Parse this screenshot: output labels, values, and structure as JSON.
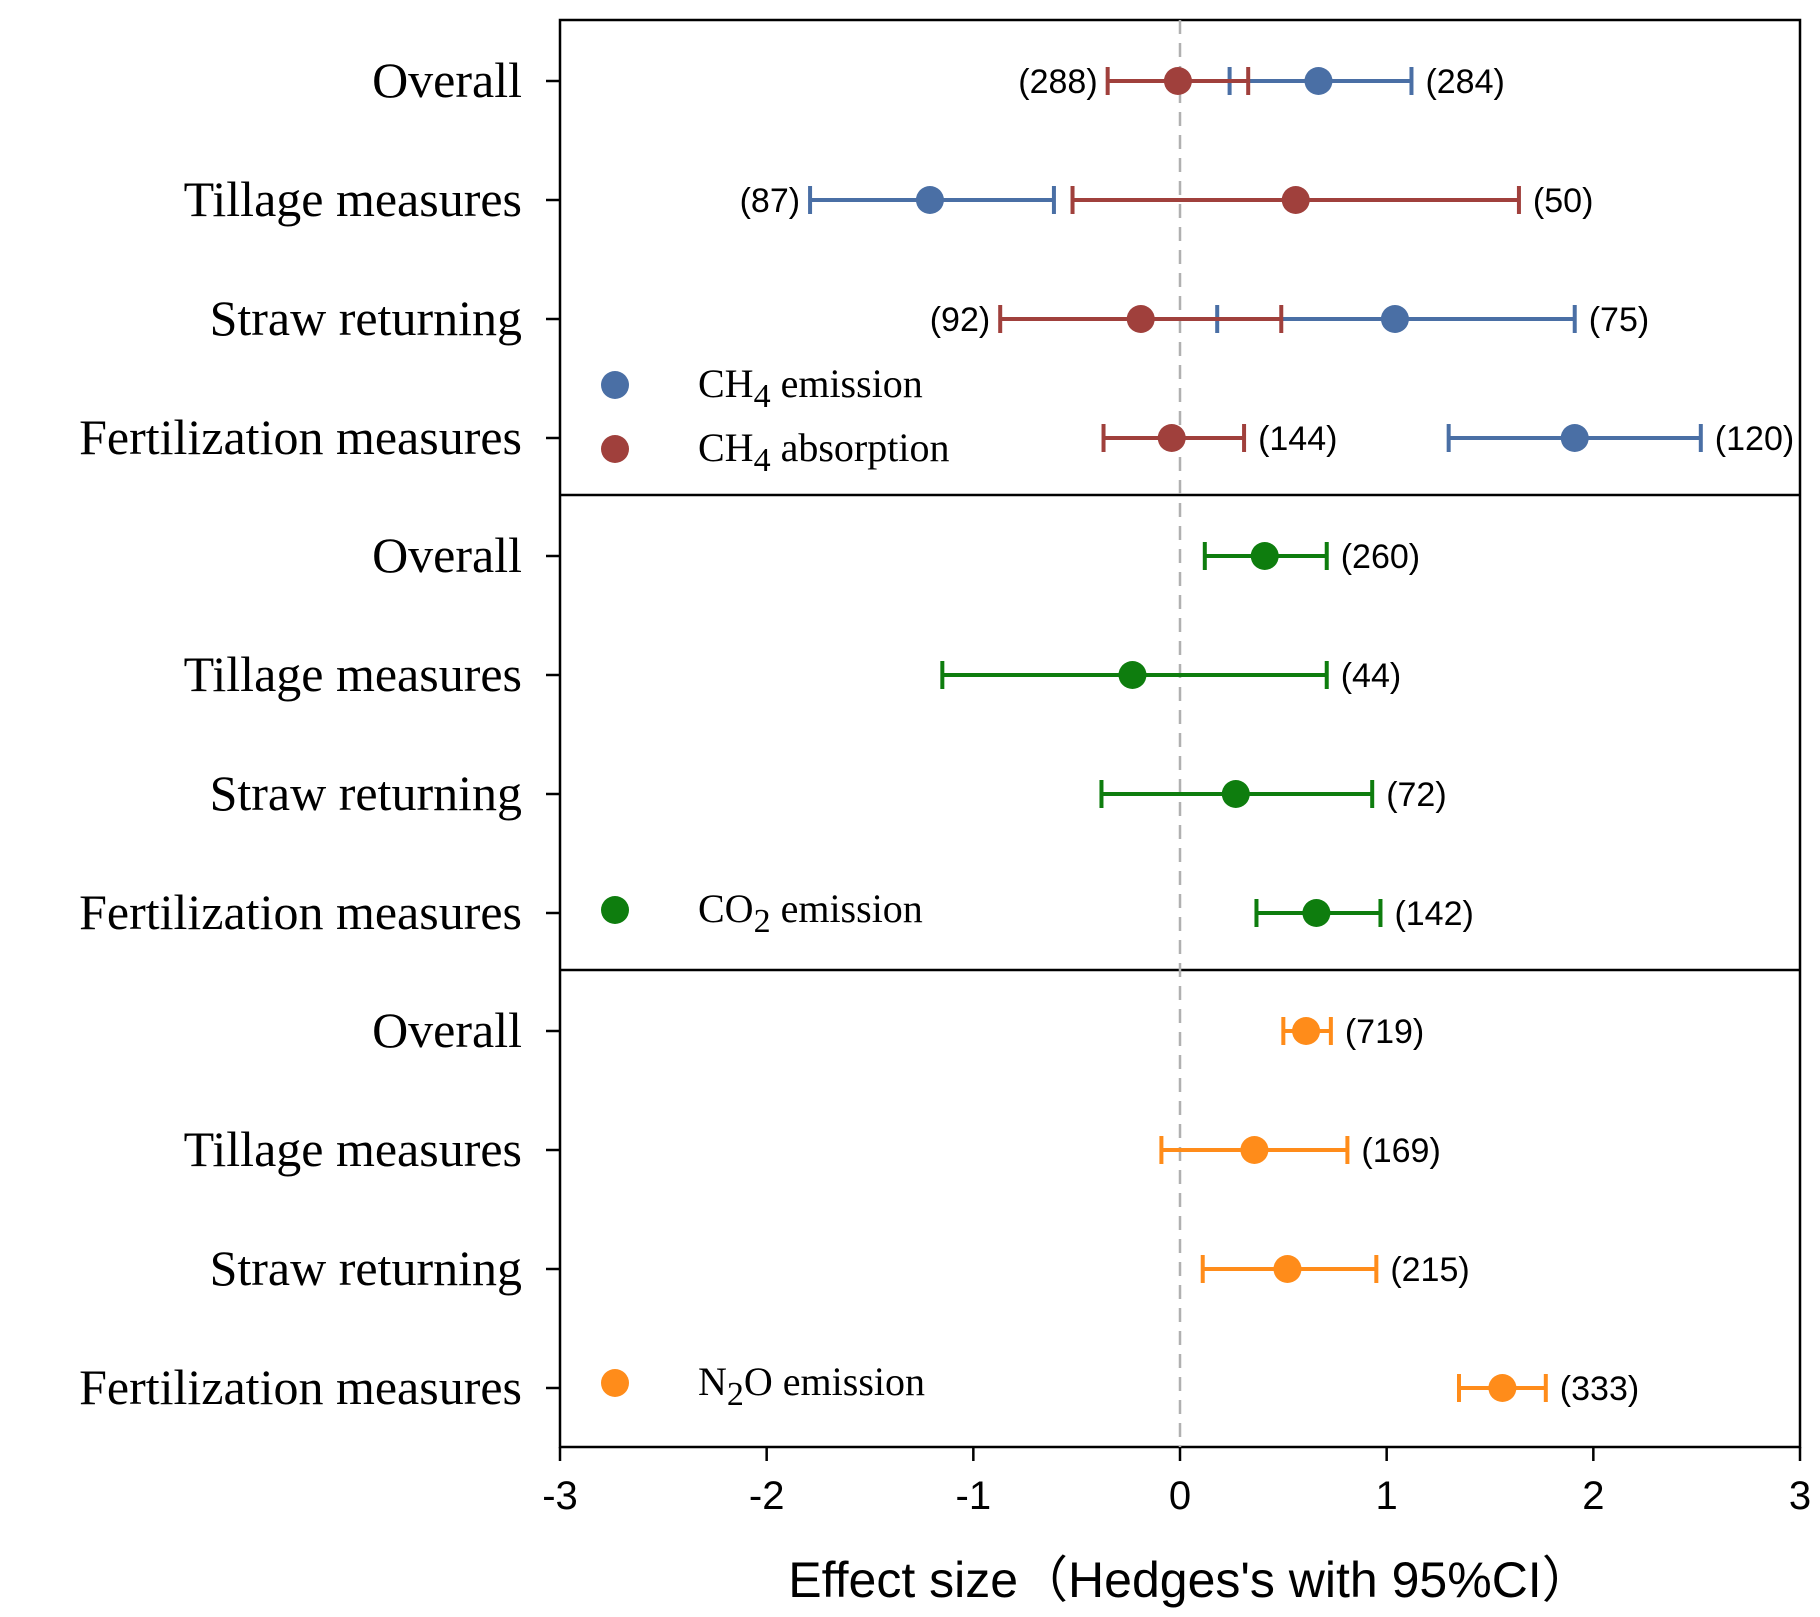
{
  "chart_data": {
    "type": "forest",
    "xlabel": "Effect size（Hedges's with 95%CI）",
    "xlim": [
      -3,
      3
    ],
    "xticks": [
      "-3",
      "-2",
      "-1",
      "0",
      "1",
      "2",
      "3"
    ],
    "reference_line": 0,
    "categories": [
      "Overall",
      "Tillage measures",
      "Straw returning",
      "Fertilization measures"
    ],
    "panels": [
      {
        "name": "CH4",
        "legend": [
          {
            "pre": "CH",
            "sub": "4",
            "post": " emission",
            "color": "#4A6FA5"
          },
          {
            "pre": "CH",
            "sub": "4",
            "post": " absorption",
            "color": "#A0403C"
          }
        ],
        "series": [
          {
            "name": "CH4 emission",
            "color": "#4A6FA5",
            "points": [
              {
                "category": "Overall",
                "mean": 0.67,
                "lo": 0.24,
                "hi": 1.12,
                "n": "(284)",
                "label_side": "right"
              },
              {
                "category": "Tillage measures",
                "mean": -1.21,
                "lo": -1.79,
                "hi": -0.61,
                "n": "(87)",
                "label_side": "left"
              },
              {
                "category": "Straw returning",
                "mean": 1.04,
                "lo": 0.18,
                "hi": 1.91,
                "n": "(75)",
                "label_side": "right"
              },
              {
                "category": "Fertilization measures",
                "mean": 1.91,
                "lo": 1.3,
                "hi": 2.52,
                "n": "(120)",
                "label_side": "right"
              }
            ]
          },
          {
            "name": "CH4 absorption",
            "color": "#A0403C",
            "points": [
              {
                "category": "Overall",
                "mean": -0.01,
                "lo": -0.35,
                "hi": 0.33,
                "n": "(288)",
                "label_side": "left"
              },
              {
                "category": "Tillage measures",
                "mean": 0.56,
                "lo": -0.52,
                "hi": 1.64,
                "n": "(50)",
                "label_side": "right"
              },
              {
                "category": "Straw returning",
                "mean": -0.19,
                "lo": -0.87,
                "hi": 0.49,
                "n": "(92)",
                "label_side": "left"
              },
              {
                "category": "Fertilization measures",
                "mean": -0.04,
                "lo": -0.37,
                "hi": 0.31,
                "n": "(144)",
                "label_side": "right"
              }
            ]
          }
        ]
      },
      {
        "name": "CO2",
        "legend": [
          {
            "pre": "CO",
            "sub": "2",
            "post": " emission",
            "color": "#0E7D0E"
          }
        ],
        "series": [
          {
            "name": "CO2 emission",
            "color": "#0E7D0E",
            "points": [
              {
                "category": "Overall",
                "mean": 0.41,
                "lo": 0.12,
                "hi": 0.71,
                "n": "(260)",
                "label_side": "right"
              },
              {
                "category": "Tillage measures",
                "mean": -0.23,
                "lo": -1.15,
                "hi": 0.71,
                "n": "(44)",
                "label_side": "right"
              },
              {
                "category": "Straw returning",
                "mean": 0.27,
                "lo": -0.38,
                "hi": 0.93,
                "n": "(72)",
                "label_side": "right"
              },
              {
                "category": "Fertilization measures",
                "mean": 0.66,
                "lo": 0.37,
                "hi": 0.97,
                "n": "(142)",
                "label_side": "right"
              }
            ]
          }
        ]
      },
      {
        "name": "N2O",
        "legend": [
          {
            "pre": "N",
            "sub": "2",
            "post": "O emission",
            "color": "#FF8C1A"
          }
        ],
        "series": [
          {
            "name": "N2O emission",
            "color": "#FF8C1A",
            "points": [
              {
                "category": "Overall",
                "mean": 0.61,
                "lo": 0.5,
                "hi": 0.73,
                "n": "(719)",
                "label_side": "right"
              },
              {
                "category": "Tillage measures",
                "mean": 0.36,
                "lo": -0.09,
                "hi": 0.81,
                "n": "(169)",
                "label_side": "right"
              },
              {
                "category": "Straw returning",
                "mean": 0.52,
                "lo": 0.11,
                "hi": 0.95,
                "n": "(215)",
                "label_side": "right"
              },
              {
                "category": "Fertilization measures",
                "mean": 1.56,
                "lo": 1.35,
                "hi": 1.77,
                "n": "(333)",
                "label_side": "right"
              }
            ]
          }
        ]
      }
    ]
  }
}
